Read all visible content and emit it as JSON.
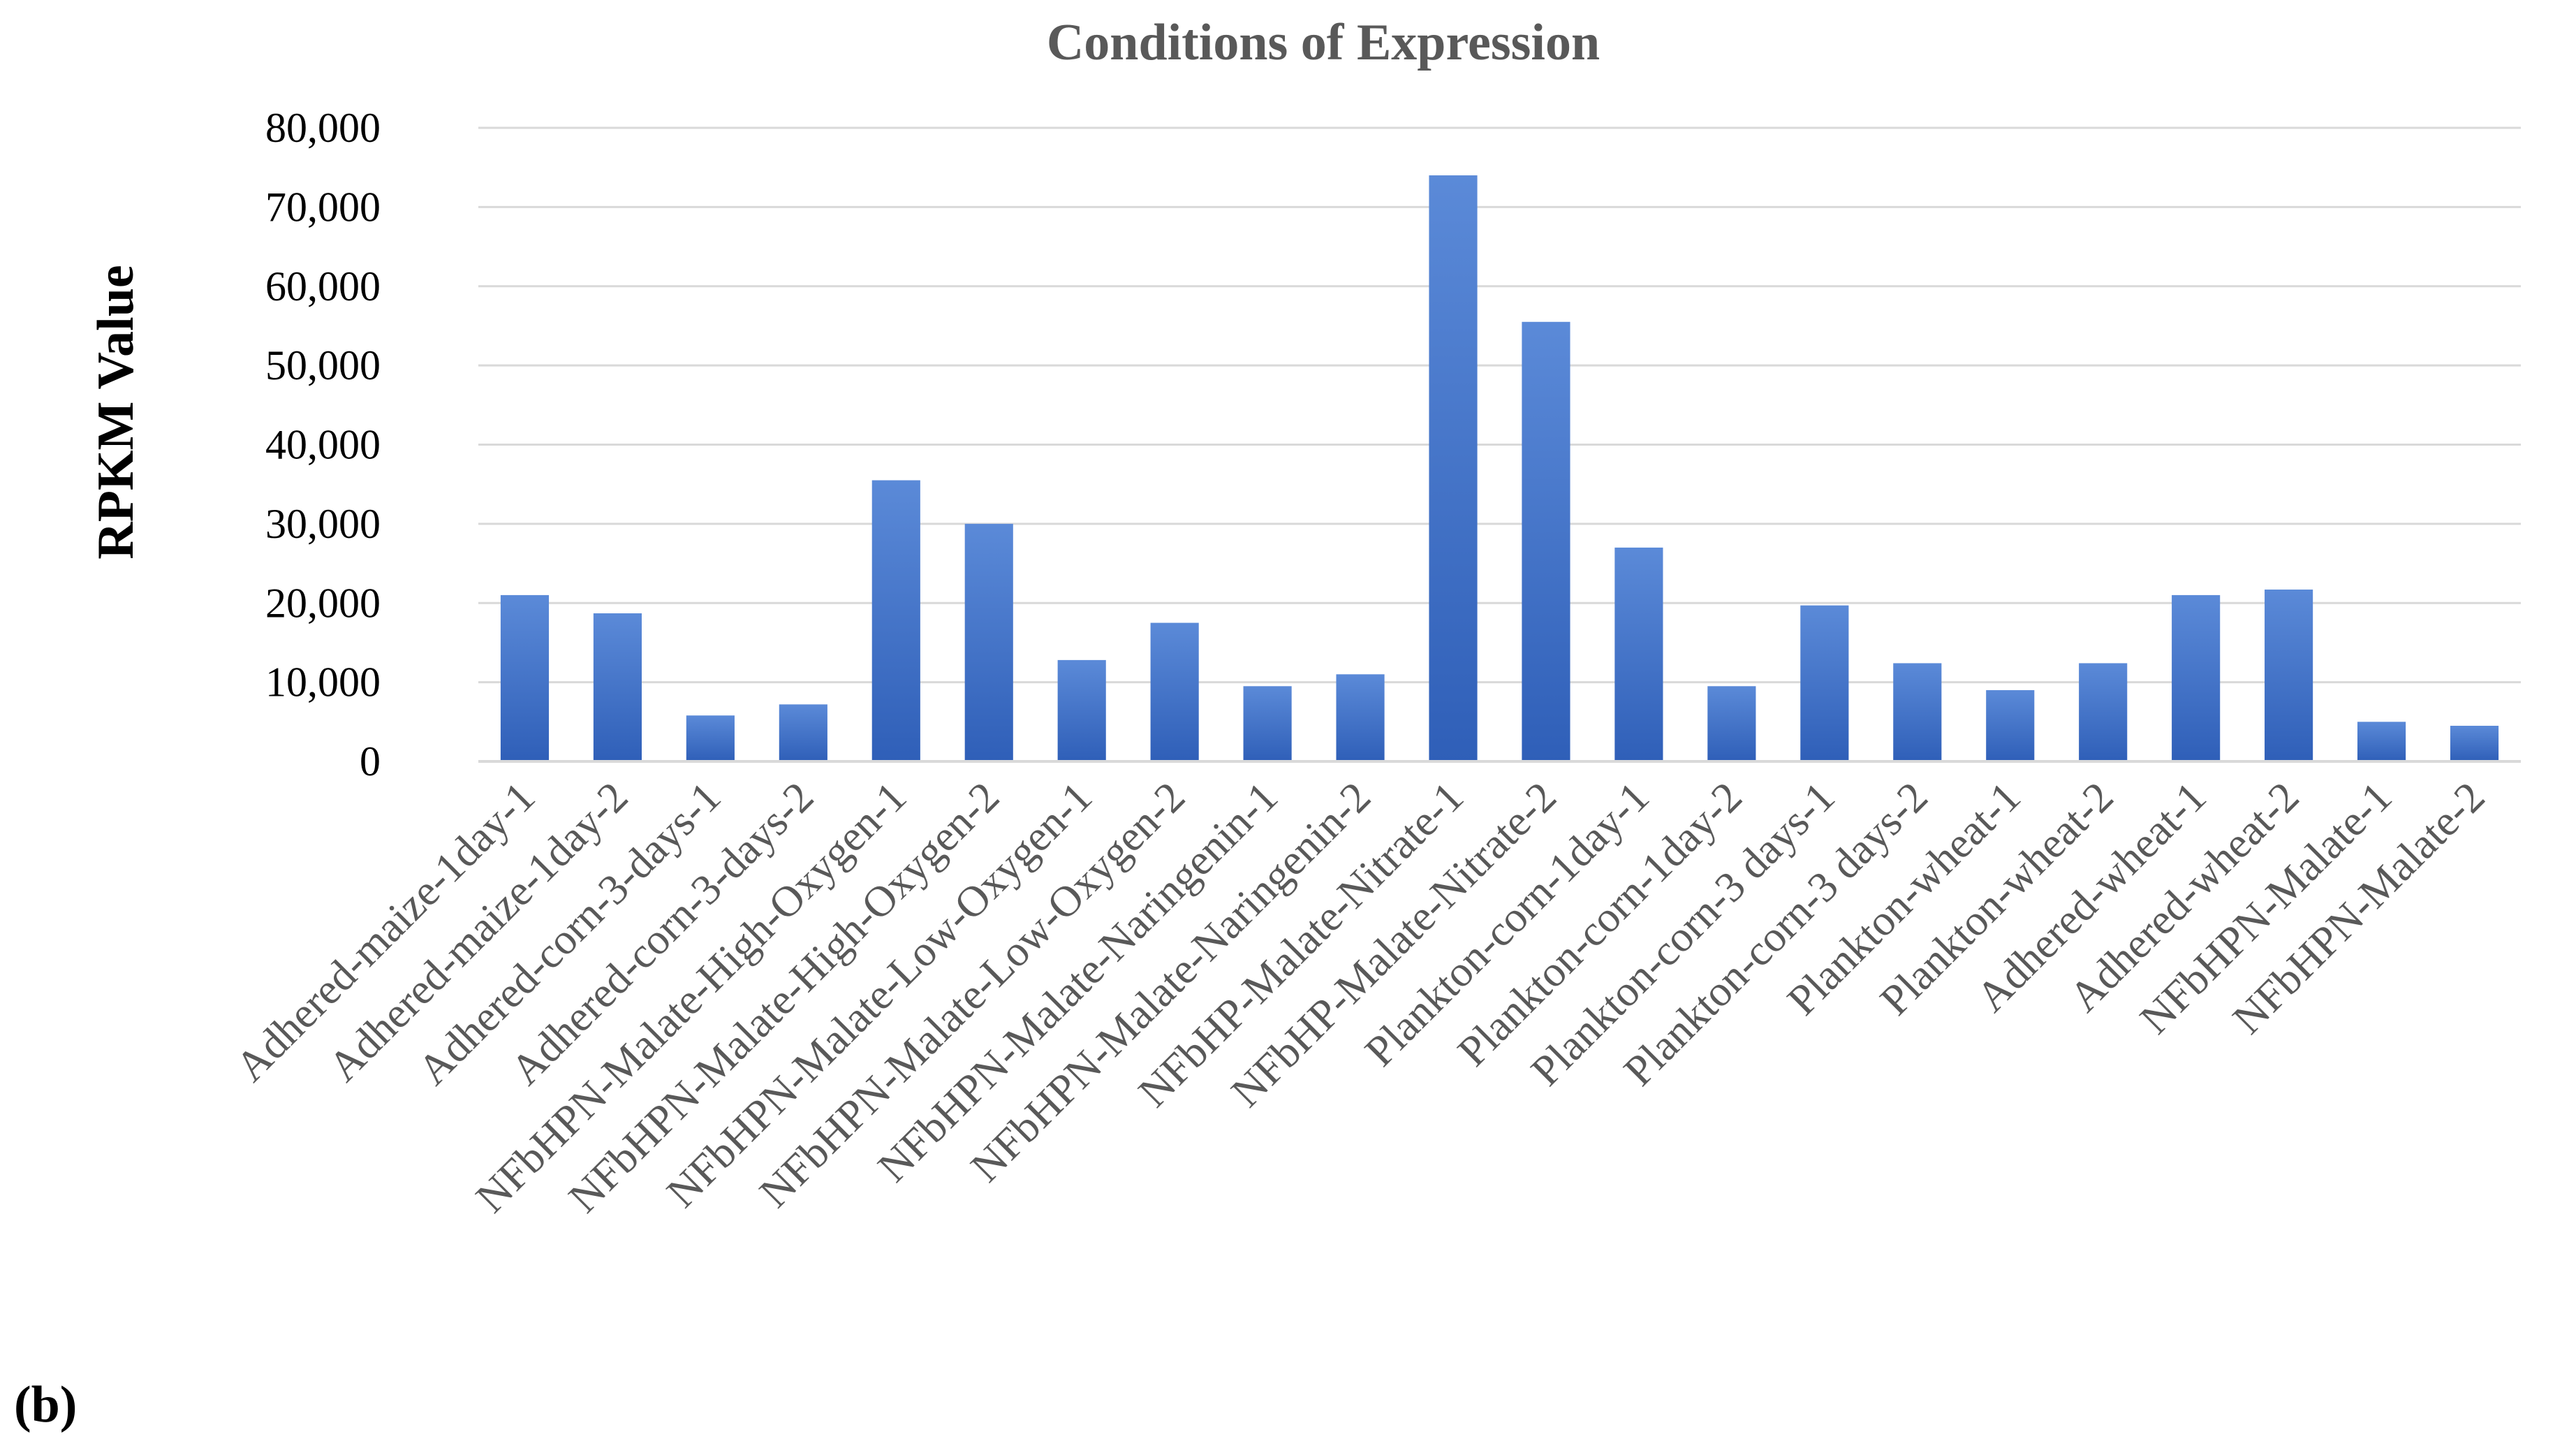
{
  "panel_label": "(b)",
  "chart_data": {
    "type": "bar",
    "title": "Conditions of Expression",
    "xlabel": "",
    "ylabel": "RPKM Value",
    "ylim": [
      0,
      80000
    ],
    "yticks": [
      0,
      10000,
      20000,
      30000,
      40000,
      50000,
      60000,
      70000,
      80000
    ],
    "ytick_labels": [
      "0",
      "10,000",
      "20,000",
      "30,000",
      "40,000",
      "50,000",
      "60,000",
      "70,000",
      "80,000"
    ],
    "grid": true,
    "bar_color": "#4472c4",
    "bar_color_light": "#5b8ad8",
    "bar_color_dark": "#2f5fb8",
    "categories": [
      "Adhered-maize-1day-1",
      "Adhered-maize-1day-2",
      "Adhered-corn-3-days-1",
      "Adhered-corn-3-days-2",
      "NFbHPN-Malate-High-Oxygen-1",
      "NFbHPN-Malate-High-Oxygen-2",
      "NFbHPN-Malate-Low-Oxygen-1",
      "NFbHPN-Malate-Low-Oxygen-2",
      "NFbHPN-Malate-Naringenin-1",
      "NFbHPN-Malate-Naringenin-2",
      "NFbHP-Malate-Nitrate-1",
      "NFbHP-Malate-Nitrate-2",
      "Plankton-corn-1day-1",
      "Plankton-corn-1day-2",
      "Plankton-corn-3 days-1",
      "Plankton-corn-3 days-2",
      "Plankton-wheat-1",
      "Plankton-wheat-2",
      "Adhered-wheat-1",
      "Adhered-wheat-2",
      "NFbHPN-Malate-1",
      "NFbHPN-Malate-2"
    ],
    "values": [
      21000,
      18700,
      5800,
      7200,
      35500,
      30000,
      12800,
      17500,
      9500,
      11000,
      74000,
      55500,
      27000,
      9500,
      19700,
      12400,
      9000,
      12400,
      21000,
      21700,
      5000,
      4500
    ]
  }
}
